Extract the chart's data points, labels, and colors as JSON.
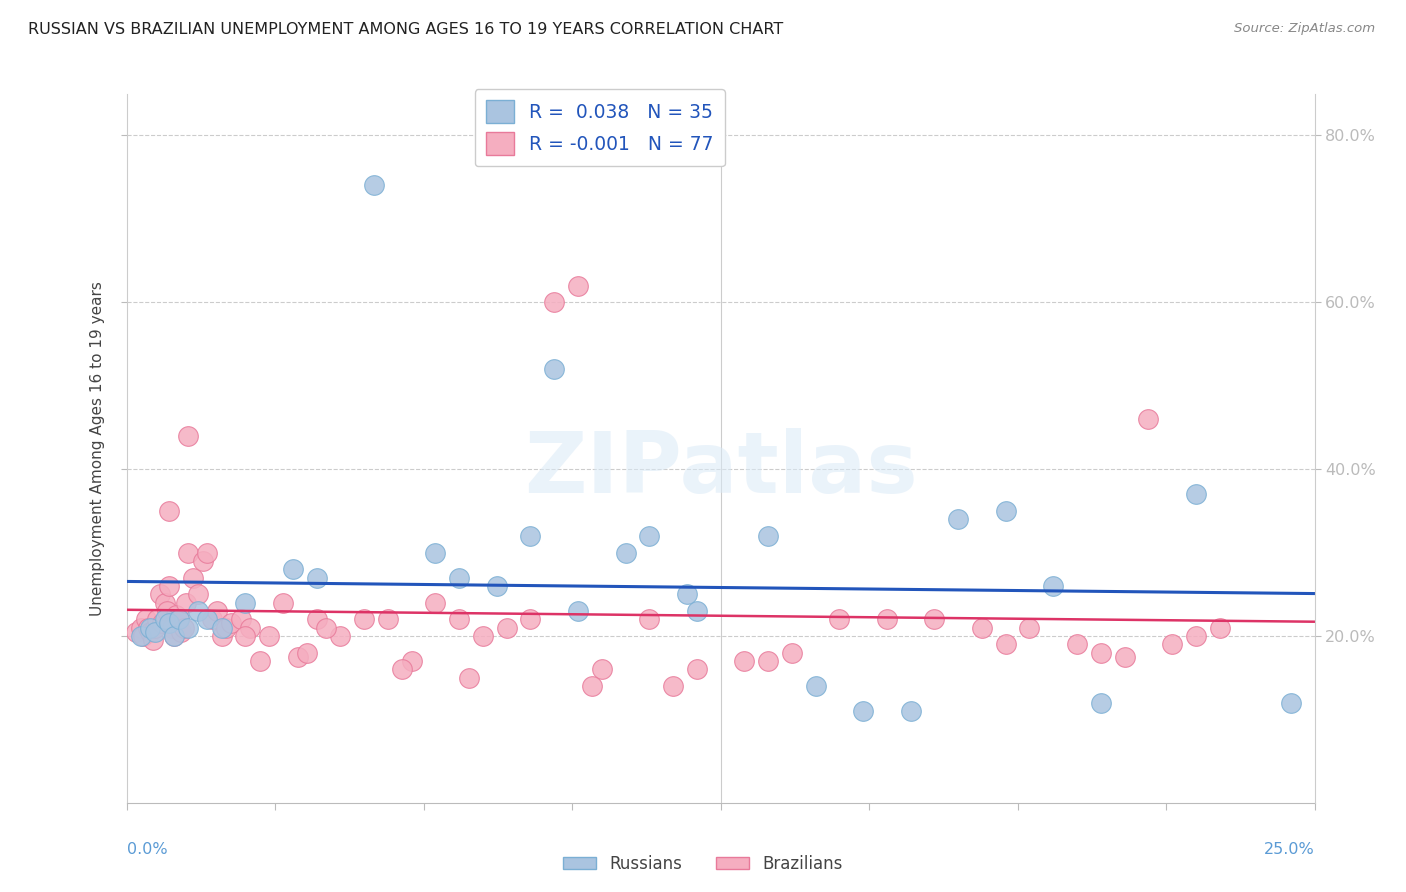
{
  "title": "RUSSIAN VS BRAZILIAN UNEMPLOYMENT AMONG AGES 16 TO 19 YEARS CORRELATION CHART",
  "source": "Source: ZipAtlas.com",
  "ylabel": "Unemployment Among Ages 16 to 19 years",
  "xlim": [
    0.0,
    25.0
  ],
  "ylim": [
    0.0,
    85.0
  ],
  "ytick_vals": [
    20.0,
    40.0,
    60.0,
    80.0
  ],
  "ytick_labels": [
    "20.0%",
    "40.0%",
    "60.0%",
    "80.0%"
  ],
  "russian_color": "#aac4e0",
  "brazilian_color": "#f5aec0",
  "russian_edge_color": "#7bafd4",
  "brazilian_edge_color": "#e87a9a",
  "trend_russian_color": "#2255bb",
  "trend_brazilian_color": "#dd3366",
  "russian_R": "0.038",
  "russian_N": 35,
  "brazilian_R": "-0.001",
  "brazilian_N": 77,
  "background_color": "#ffffff",
  "grid_color": "#cccccc",
  "watermark_text": "ZIPatlas",
  "legend_text_color": "#2255bb",
  "russians_x": [
    0.3,
    0.5,
    0.6,
    0.8,
    0.9,
    1.0,
    1.1,
    1.3,
    1.5,
    1.7,
    2.0,
    2.5,
    3.5,
    4.0,
    5.2,
    6.5,
    7.0,
    7.8,
    8.5,
    9.5,
    10.5,
    11.0,
    12.0,
    13.5,
    14.5,
    15.5,
    16.5,
    18.5,
    20.5,
    22.5,
    24.5,
    9.0,
    11.8,
    17.5,
    19.5
  ],
  "russians_y": [
    20.0,
    21.0,
    20.5,
    22.0,
    21.5,
    20.0,
    22.0,
    21.0,
    23.0,
    22.0,
    21.0,
    24.0,
    28.0,
    27.0,
    74.0,
    30.0,
    27.0,
    26.0,
    32.0,
    23.0,
    30.0,
    32.0,
    23.0,
    32.0,
    14.0,
    11.0,
    11.0,
    35.0,
    12.0,
    37.0,
    12.0,
    52.0,
    25.0,
    34.0,
    26.0
  ],
  "brazilians_x": [
    0.2,
    0.3,
    0.35,
    0.4,
    0.45,
    0.5,
    0.55,
    0.6,
    0.65,
    0.7,
    0.75,
    0.8,
    0.85,
    0.9,
    0.95,
    1.0,
    1.05,
    1.1,
    1.15,
    1.2,
    1.25,
    1.3,
    1.4,
    1.5,
    1.6,
    1.7,
    1.8,
    1.9,
    2.0,
    2.1,
    2.2,
    2.4,
    2.6,
    2.8,
    3.0,
    3.3,
    3.6,
    4.0,
    4.5,
    5.0,
    5.5,
    6.0,
    6.5,
    7.0,
    7.5,
    8.0,
    8.5,
    9.0,
    9.5,
    10.0,
    11.0,
    12.0,
    13.0,
    14.0,
    15.0,
    16.0,
    17.0,
    18.0,
    19.0,
    20.0,
    20.5,
    21.0,
    22.0,
    23.0,
    0.9,
    1.3,
    2.5,
    3.8,
    4.2,
    5.8,
    7.2,
    9.8,
    11.5,
    13.5,
    18.5,
    21.5,
    22.5
  ],
  "brazilians_y": [
    20.5,
    21.0,
    20.0,
    22.0,
    21.0,
    20.5,
    19.5,
    21.0,
    22.0,
    25.0,
    21.5,
    24.0,
    23.0,
    26.0,
    21.0,
    20.0,
    22.5,
    22.0,
    20.5,
    21.0,
    24.0,
    30.0,
    27.0,
    25.0,
    29.0,
    30.0,
    22.0,
    23.0,
    20.0,
    21.0,
    21.5,
    22.0,
    21.0,
    17.0,
    20.0,
    24.0,
    17.5,
    22.0,
    20.0,
    22.0,
    22.0,
    17.0,
    24.0,
    22.0,
    20.0,
    21.0,
    22.0,
    60.0,
    62.0,
    16.0,
    22.0,
    16.0,
    17.0,
    18.0,
    22.0,
    22.0,
    22.0,
    21.0,
    21.0,
    19.0,
    18.0,
    17.5,
    19.0,
    21.0,
    35.0,
    44.0,
    20.0,
    18.0,
    21.0,
    16.0,
    15.0,
    14.0,
    14.0,
    17.0,
    19.0,
    46.0,
    20.0
  ]
}
